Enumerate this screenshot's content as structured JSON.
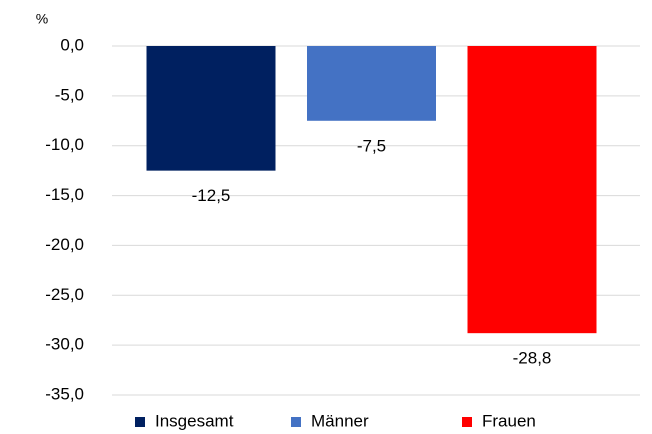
{
  "chart_data": {
    "type": "bar",
    "y_unit": "%",
    "categories": [
      null
    ],
    "series": [
      {
        "name": "Insgesamt",
        "color": "#002060",
        "values": [
          -12.5
        ],
        "value_labels": [
          "-12,5"
        ]
      },
      {
        "name": "Männer",
        "color": "#4472c4",
        "values": [
          -7.5
        ],
        "value_labels": [
          "-7,5"
        ]
      },
      {
        "name": "Frauen",
        "color": "#ff0000",
        "values": [
          -28.8
        ],
        "value_labels": [
          "-28,8"
        ]
      }
    ],
    "ylim": [
      -35,
      0
    ],
    "yticks": [
      {
        "value": 0,
        "label": "0,0"
      },
      {
        "value": -5,
        "label": "-5,0"
      },
      {
        "value": -10,
        "label": "-10,0"
      },
      {
        "value": -15,
        "label": "-15,0"
      },
      {
        "value": -20,
        "label": "-20,0"
      },
      {
        "value": -25,
        "label": "-25,0"
      },
      {
        "value": -30,
        "label": "-30,0"
      },
      {
        "value": -35,
        "label": "-35,0"
      }
    ],
    "grid": true,
    "legend": "bottom"
  }
}
